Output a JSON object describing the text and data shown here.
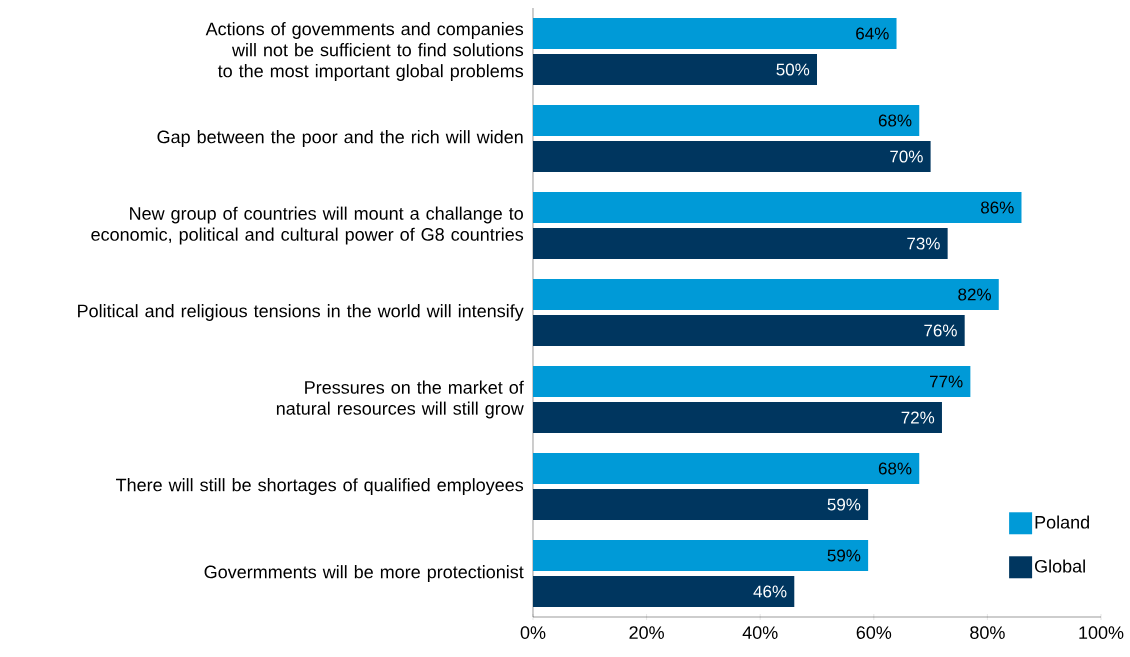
{
  "chart_data": {
    "type": "bar",
    "orientation": "horizontal",
    "categories": [
      "Actions of govemments and companies will not be sufficient to find solutions to the most important global problems",
      "Gap between the poor and the rich will widen",
      "New group of countries will mount a challange to economic, political and cultural power of G8 countries",
      "Political and religious tensions in the world will intensify",
      "Pressures on the market of natural resources will still grow",
      "There will still be shortages of qualified employees",
      "Govermments will be more protectionist"
    ],
    "series": [
      {
        "name": "Poland",
        "color": "#009ad7",
        "values": [
          64,
          68,
          86,
          82,
          77,
          68,
          59
        ],
        "value_labels": [
          "64%",
          "68%",
          "86%",
          "82%",
          "77%",
          "68%",
          "59%"
        ]
      },
      {
        "name": "Global",
        "color": "#00365f",
        "values": [
          50,
          70,
          73,
          76,
          72,
          59,
          46
        ],
        "value_labels": [
          "50%",
          "70%",
          "73%",
          "76%",
          "72%",
          "59%",
          "46%"
        ]
      }
    ],
    "xlim": [
      0,
      100
    ],
    "xticks": [
      {
        "value": 0,
        "label": "0%"
      },
      {
        "value": 20,
        "label": "20%"
      },
      {
        "value": 40,
        "label": "40%"
      },
      {
        "value": 60,
        "label": "60%"
      },
      {
        "value": 80,
        "label": "80%"
      },
      {
        "value": 100,
        "label": "100%"
      }
    ],
    "legend": "bottom right",
    "grid": false
  }
}
